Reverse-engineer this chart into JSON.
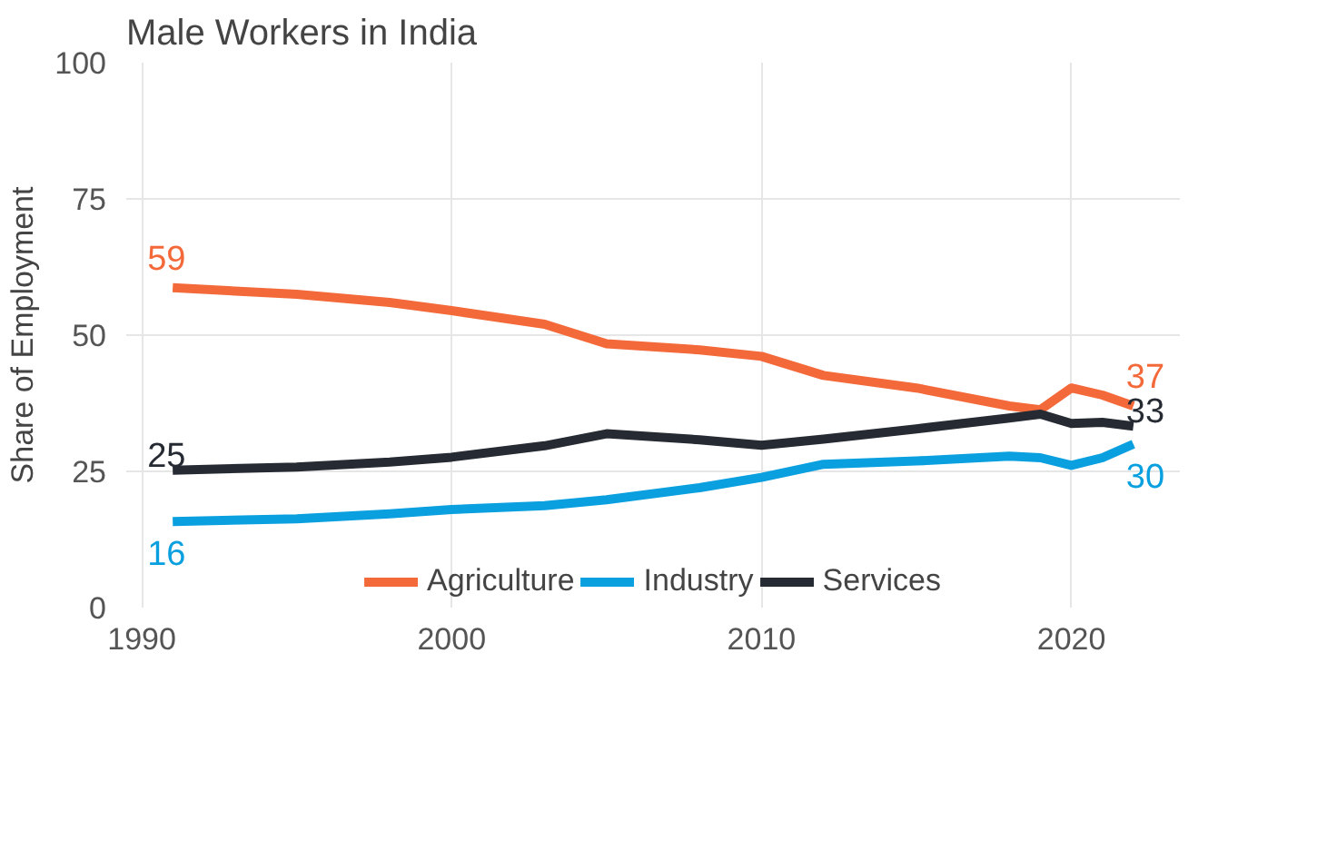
{
  "chart_data": {
    "type": "line",
    "title": "Male Workers in India",
    "ylabel": "Share of Employment",
    "xlim": [
      1989.5,
      2023.5
    ],
    "xticks": [
      1990,
      2000,
      2010,
      2020
    ],
    "ylim": [
      0,
      100
    ],
    "yticks": [
      0,
      25,
      50,
      75,
      100
    ],
    "x": [
      1991,
      1995,
      1998,
      2000,
      2003,
      2005,
      2008,
      2010,
      2012,
      2015,
      2018,
      2019,
      2020,
      2021,
      2022
    ],
    "series": [
      {
        "name": "Agriculture",
        "color": "#f4693a",
        "values": [
          58.7,
          57.5,
          56,
          54.5,
          52,
          48.4,
          47.3,
          46.1,
          42.6,
          40.3,
          37,
          36.3,
          40.3,
          39,
          37
        ],
        "value_labels": [
          "59",
          null,
          null,
          null,
          null,
          null,
          null,
          null,
          null,
          null,
          null,
          null,
          null,
          null,
          "37"
        ]
      },
      {
        "name": "Industry",
        "color": "#0aa0e0",
        "values": [
          15.8,
          16.3,
          17.2,
          18,
          18.7,
          19.8,
          22,
          23.9,
          26.3,
          26.9,
          27.8,
          27.5,
          26.1,
          27.5,
          30
        ],
        "value_labels": [
          "16",
          null,
          null,
          null,
          null,
          null,
          null,
          null,
          null,
          null,
          null,
          null,
          null,
          null,
          "30"
        ]
      },
      {
        "name": "Services",
        "color": "#262a33",
        "values": [
          25.2,
          25.8,
          26.7,
          27.6,
          29.7,
          31.9,
          30.8,
          29.8,
          30.9,
          32.8,
          34.8,
          35.5,
          33.8,
          34,
          33.3
        ],
        "value_labels": [
          "25",
          null,
          null,
          null,
          null,
          null,
          null,
          null,
          null,
          null,
          null,
          null,
          null,
          null,
          "33"
        ]
      }
    ],
    "grid": true,
    "legend": "bottom",
    "line_style": "solid"
  }
}
